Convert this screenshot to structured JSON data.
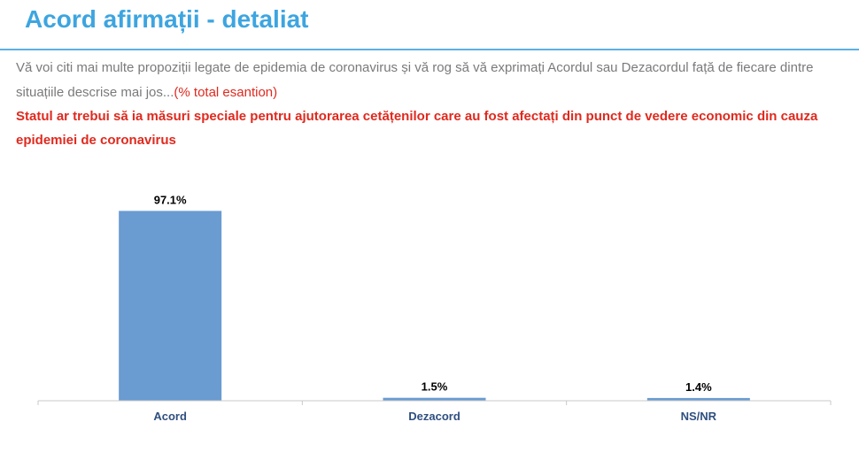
{
  "page": {
    "title": "Acord afirmații - detaliat",
    "question": "Vă voi citi mai multe propoziții legate de epidemia de coronavirus și vă rog să vă exprimați Acordul sau Dezacordul față de fiecare dintre situațiile descrise mai jos...",
    "base_note": "(% total esantion)",
    "statement": "Statul ar trebui să ia măsuri speciale pentru ajutorarea cetățenilor care au fost afectați din punct de vedere economic din cauza epidemiei de coronavirus"
  },
  "colors": {
    "title": "#3da5e0",
    "statement": "#e0291e",
    "bar": "#6a9bd1",
    "category_label": "#2f4f7f"
  },
  "chart_data": {
    "type": "bar",
    "categories": [
      "Acord",
      "Dezacord",
      "NS/NR"
    ],
    "values": [
      97.1,
      1.5,
      1.4
    ],
    "data_labels": [
      "97.1%",
      "1.5%",
      "1.4%"
    ],
    "ylim": [
      0,
      100
    ],
    "grid": false,
    "legend": "none"
  }
}
